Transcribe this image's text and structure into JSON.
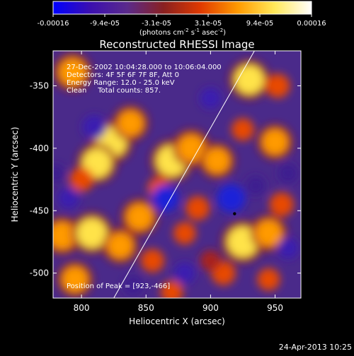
{
  "colorbar": {
    "ticks": [
      "-0.00016",
      "-9.4e-05",
      "-3.1e-05",
      "3.1e-05",
      "9.4e-05",
      "0.00016"
    ],
    "unit_main": "(photons cm",
    "unit_exp1": "-2",
    "unit_mid": " s",
    "unit_exp2": "-1",
    "unit_tail": " asec",
    "unit_exp3": "-2",
    "unit_end": ")",
    "colors": [
      "#0000ff",
      "#3b0fb0",
      "#5a2a8c",
      "#8a2020",
      "#e03a00",
      "#ff9a00",
      "#ffe95a",
      "#ffffff"
    ]
  },
  "figure": {
    "title": "Reconstructed RHESSI Image",
    "info_lines": [
      "27-Dec-2002 10:04:28.000 to 10:06:04.000",
      "Detectors: 4F 5F 6F 7F 8F, Att 0",
      "Energy Range: 12.0 - 25.0 keV",
      "Clean     Total counts: 857."
    ],
    "peak_label": "Position of Peak = [923,-466]",
    "footer_date": "24-Apr-2013 10:25"
  },
  "chart_data": {
    "type": "heatmap",
    "title": "Reconstructed RHESSI Image",
    "xlabel": "Heliocentric X (arcsec)",
    "ylabel": "Heliocentric Y (arcsec)",
    "xlim": [
      778,
      970
    ],
    "ylim": [
      -520,
      -322
    ],
    "xticks": [
      800,
      850,
      900,
      950
    ],
    "yticks": [
      -350,
      -400,
      -450,
      -500
    ],
    "value_range": [
      -0.00016,
      0.00016
    ],
    "peak": [
      923,
      -466
    ],
    "limb_line": [
      [
        825,
        -520
      ],
      [
        934,
        -322
      ]
    ],
    "blobs": [
      {
        "x": 793,
        "y": -339,
        "v": 0.8
      },
      {
        "x": 823,
        "y": -395,
        "v": 1.0
      },
      {
        "x": 812,
        "y": -412,
        "v": 0.9
      },
      {
        "x": 800,
        "y": -425,
        "v": 0.6
      },
      {
        "x": 838,
        "y": -380,
        "v": 0.7
      },
      {
        "x": 870,
        "y": -410,
        "v": 1.0
      },
      {
        "x": 885,
        "y": -400,
        "v": 0.8
      },
      {
        "x": 860,
        "y": -432,
        "v": 0.5
      },
      {
        "x": 905,
        "y": -410,
        "v": 0.7
      },
      {
        "x": 890,
        "y": -448,
        "v": 0.6
      },
      {
        "x": 930,
        "y": -345,
        "v": 0.9
      },
      {
        "x": 952,
        "y": -350,
        "v": 0.6
      },
      {
        "x": 950,
        "y": -395,
        "v": 0.7
      },
      {
        "x": 925,
        "y": -385,
        "v": 0.5
      },
      {
        "x": 785,
        "y": -470,
        "v": 0.8
      },
      {
        "x": 808,
        "y": -468,
        "v": 0.95
      },
      {
        "x": 830,
        "y": -478,
        "v": 0.7
      },
      {
        "x": 845,
        "y": -455,
        "v": 0.75
      },
      {
        "x": 855,
        "y": -490,
        "v": 0.55
      },
      {
        "x": 795,
        "y": -505,
        "v": 0.7
      },
      {
        "x": 880,
        "y": -468,
        "v": 0.5
      },
      {
        "x": 925,
        "y": -475,
        "v": 1.0
      },
      {
        "x": 945,
        "y": -468,
        "v": 0.75
      },
      {
        "x": 955,
        "y": -445,
        "v": 0.6
      },
      {
        "x": 910,
        "y": -500,
        "v": 0.6
      },
      {
        "x": 945,
        "y": -505,
        "v": 0.5
      },
      {
        "x": 870,
        "y": -515,
        "v": 0.5
      },
      {
        "x": 900,
        "y": -490,
        "v": 0.4
      },
      {
        "x": 865,
        "y": -440,
        "v": -0.9
      },
      {
        "x": 916,
        "y": -440,
        "v": -1.0
      },
      {
        "x": 810,
        "y": -383,
        "v": -0.7
      },
      {
        "x": 780,
        "y": -420,
        "v": -0.3
      },
      {
        "x": 900,
        "y": -360,
        "v": -0.5
      },
      {
        "x": 960,
        "y": -420,
        "v": -0.4
      },
      {
        "x": 790,
        "y": -440,
        "v": -0.5
      },
      {
        "x": 840,
        "y": -510,
        "v": -0.4
      },
      {
        "x": 880,
        "y": -500,
        "v": -0.5
      },
      {
        "x": 935,
        "y": -430,
        "v": -0.4
      },
      {
        "x": 960,
        "y": -480,
        "v": -0.5
      }
    ]
  }
}
